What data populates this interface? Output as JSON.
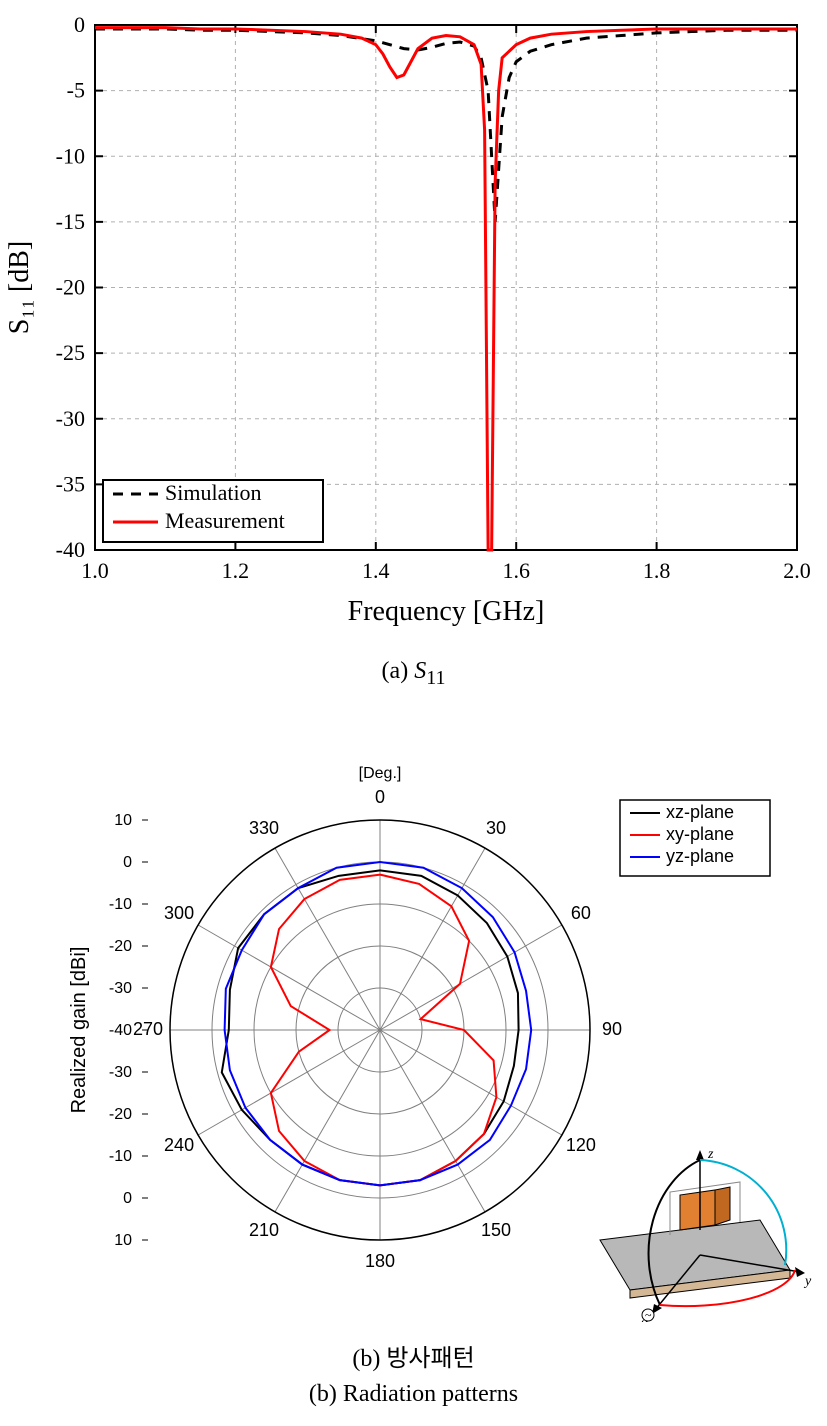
{
  "chartA": {
    "type": "line",
    "xlabel": "Frequency [GHz]",
    "ylabel": "S₁₁ [dB]",
    "xlabel_fontsize": 28,
    "ylabel_fontsize": 28,
    "tick_fontsize": 22,
    "xlim": [
      1.0,
      2.0
    ],
    "ylim": [
      -40,
      0
    ],
    "xtick_step": 0.2,
    "ytick_step": 5,
    "xticks": [
      "1.0",
      "1.2",
      "1.4",
      "1.6",
      "1.8",
      "2.0"
    ],
    "yticks": [
      "0",
      "-5",
      "-10",
      "-15",
      "-20",
      "-25",
      "-30",
      "-35",
      "-40"
    ],
    "background_color": "#ffffff",
    "grid_color": "#b0b0b0",
    "grid_dash": "4 4",
    "axis_color": "#000000",
    "axis_width": 2,
    "legend": {
      "position": "lower-left",
      "border_color": "#000000",
      "border_width": 2,
      "fontsize": 22,
      "entries": [
        {
          "label": "Simulation",
          "color": "#000000",
          "dash": "10 8",
          "width": 3
        },
        {
          "label": "Measurement",
          "color": "#ff0000",
          "dash": "none",
          "width": 3
        }
      ]
    },
    "series": [
      {
        "name": "Simulation",
        "color": "#000000",
        "dash": "10 8",
        "width": 3,
        "x": [
          1.0,
          1.05,
          1.1,
          1.15,
          1.2,
          1.25,
          1.3,
          1.35,
          1.4,
          1.42,
          1.44,
          1.46,
          1.48,
          1.5,
          1.52,
          1.54,
          1.55,
          1.56,
          1.57,
          1.58,
          1.59,
          1.6,
          1.62,
          1.65,
          1.7,
          1.75,
          1.8,
          1.85,
          1.9,
          1.95,
          2.0
        ],
        "y": [
          -0.3,
          -0.3,
          -0.3,
          -0.4,
          -0.4,
          -0.5,
          -0.6,
          -0.8,
          -1.2,
          -1.5,
          -1.8,
          -1.9,
          -1.7,
          -1.4,
          -1.3,
          -1.6,
          -2.5,
          -5.0,
          -15.0,
          -7.0,
          -4.0,
          -2.8,
          -2.0,
          -1.5,
          -1.0,
          -0.8,
          -0.6,
          -0.5,
          -0.4,
          -0.4,
          -0.4
        ]
      },
      {
        "name": "Measurement",
        "color": "#ff0000",
        "dash": "none",
        "width": 3,
        "x": [
          1.0,
          1.05,
          1.1,
          1.15,
          1.2,
          1.25,
          1.3,
          1.35,
          1.38,
          1.4,
          1.41,
          1.42,
          1.43,
          1.44,
          1.45,
          1.46,
          1.48,
          1.5,
          1.52,
          1.54,
          1.55,
          1.555,
          1.56,
          1.565,
          1.57,
          1.575,
          1.58,
          1.6,
          1.62,
          1.65,
          1.7,
          1.75,
          1.8,
          1.85,
          1.9,
          1.95,
          2.0
        ],
        "y": [
          -0.2,
          -0.2,
          -0.2,
          -0.3,
          -0.3,
          -0.4,
          -0.5,
          -0.7,
          -1.0,
          -1.5,
          -2.2,
          -3.2,
          -4.0,
          -3.8,
          -2.8,
          -1.8,
          -1.0,
          -0.8,
          -0.9,
          -1.5,
          -3.0,
          -8.0,
          -40.0,
          -40.0,
          -12.0,
          -5.0,
          -2.5,
          -1.5,
          -1.0,
          -0.7,
          -0.5,
          -0.4,
          -0.3,
          -0.3,
          -0.3,
          -0.3,
          -0.3
        ]
      }
    ],
    "caption_html": "(a) <i>S</i><sub>11</sub>"
  },
  "chartB": {
    "type": "polar",
    "title_unit": "[Deg.]",
    "radial_label": "Realized gain [dBi]",
    "radial_label_fontsize": 20,
    "angle_fontsize": 18,
    "radial_fontsize": 16,
    "rlim": [
      -40,
      10
    ],
    "rticks": [
      -40,
      -30,
      -20,
      -10,
      0,
      10
    ],
    "rtick_labels_left": [
      "10",
      "0",
      "-10",
      "-20",
      "-30",
      "-40",
      "-30",
      "-20",
      "-10",
      "0",
      "10"
    ],
    "angle_ticks": [
      0,
      30,
      60,
      90,
      120,
      150,
      180,
      210,
      240,
      270,
      300,
      330
    ],
    "grid_color": "#808080",
    "grid_width": 1,
    "background_color": "#ffffff",
    "legend": {
      "position": "upper-right",
      "border_color": "#000000",
      "fontsize": 18,
      "entries": [
        {
          "label": "xz-plane",
          "color": "#000000",
          "width": 2
        },
        {
          "label": "xy-plane",
          "color": "#ff0000",
          "width": 2
        },
        {
          "label": "yz-plane",
          "color": "#0000ff",
          "width": 2
        }
      ]
    },
    "series": [
      {
        "name": "xz-plane",
        "color": "#000000",
        "width": 2,
        "theta_deg": [
          0,
          15,
          30,
          45,
          60,
          75,
          90,
          105,
          120,
          135,
          150,
          165,
          180,
          195,
          210,
          225,
          240,
          255,
          270,
          285,
          300,
          315,
          330,
          345,
          360
        ],
        "r_dbi": [
          -2,
          -2,
          -3,
          -4,
          -5,
          -6,
          -7,
          -7,
          -6,
          -5,
          -4,
          -3,
          -3,
          -3,
          -3,
          -3,
          -2,
          -1,
          -4,
          -3,
          -1,
          -1,
          -1,
          -2,
          -2
        ]
      },
      {
        "name": "xy-plane",
        "color": "#ff0000",
        "width": 2,
        "theta_deg": [
          0,
          15,
          30,
          45,
          60,
          75,
          90,
          105,
          120,
          135,
          150,
          165,
          180,
          195,
          210,
          225,
          240,
          255,
          270,
          285,
          300,
          315,
          330,
          345,
          360
        ],
        "r_dbi": [
          -3,
          -4,
          -6,
          -10,
          -18,
          -30,
          -20,
          -12,
          -8,
          -5,
          -4,
          -3,
          -3,
          -3,
          -4,
          -6,
          -10,
          -20,
          -28,
          -18,
          -10,
          -6,
          -4,
          -3,
          -3
        ]
      },
      {
        "name": "yz-plane",
        "color": "#0000ff",
        "width": 2,
        "theta_deg": [
          0,
          15,
          30,
          45,
          60,
          75,
          90,
          105,
          120,
          135,
          150,
          165,
          180,
          195,
          210,
          225,
          240,
          255,
          270,
          285,
          300,
          315,
          330,
          345,
          360
        ],
        "r_dbi": [
          0,
          0,
          -1,
          -2,
          -3,
          -4,
          -4,
          -4,
          -4,
          -3,
          -3,
          -3,
          -3,
          -3,
          -3,
          -3,
          -3,
          -3,
          -3,
          -2,
          -2,
          -1,
          -1,
          0,
          0
        ]
      }
    ],
    "inset_diagram": {
      "plate_color": "#b8b8b8",
      "substrate_color": "#d4b896",
      "antenna_color": "#e08030",
      "axis_label_color": "#000000",
      "curve_colors": {
        "xz": "#000000",
        "xy": "#ff0000",
        "yz": "#00b0d0"
      }
    },
    "caption1": "(b) 방사패턴",
    "caption2": "(b) Radiation patterns"
  }
}
